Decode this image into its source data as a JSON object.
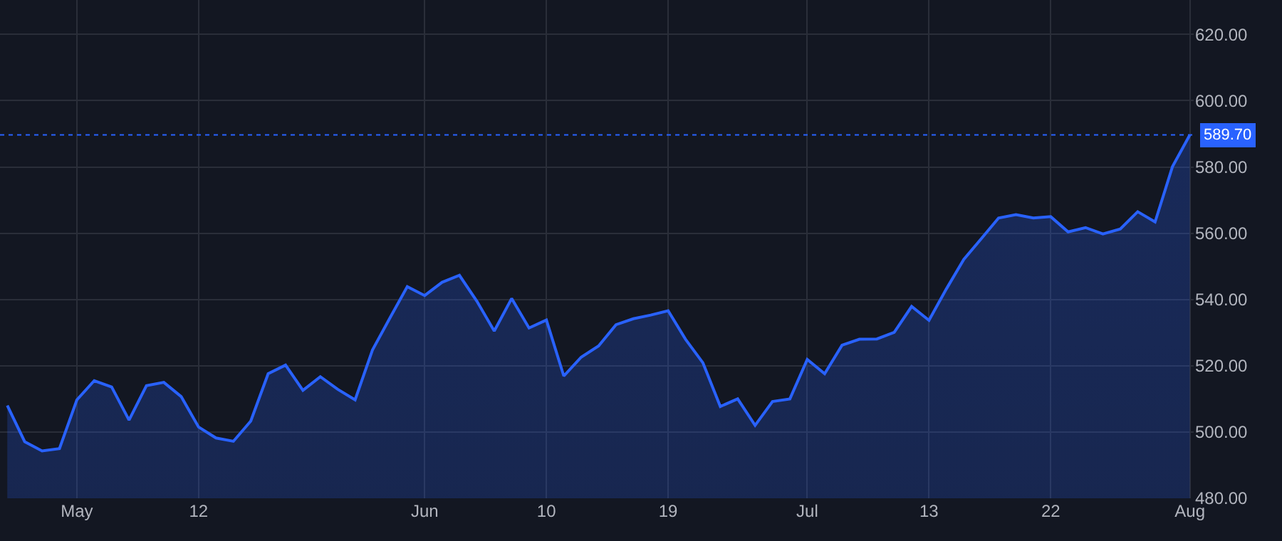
{
  "chart_data": {
    "type": "area",
    "categories": [
      null,
      null,
      null,
      null,
      "May",
      null,
      null,
      null,
      null,
      null,
      null,
      "12",
      null,
      null,
      null,
      null,
      null,
      null,
      null,
      null,
      null,
      null,
      null,
      null,
      "Jun",
      null,
      null,
      null,
      null,
      null,
      null,
      "10",
      null,
      null,
      null,
      null,
      null,
      null,
      "19",
      null,
      null,
      null,
      null,
      null,
      null,
      null,
      "Jul",
      null,
      null,
      null,
      null,
      null,
      null,
      "13",
      null,
      null,
      null,
      null,
      null,
      null,
      "22",
      null,
      null,
      null,
      null,
      null,
      null,
      null,
      "Aug"
    ],
    "series": [
      {
        "color": "#2962ff",
        "values": [
          508.0,
          497.1,
          494.3,
          495.0,
          509.7,
          515.5,
          513.6,
          503.6,
          514.0,
          515.0,
          510.7,
          501.5,
          498.2,
          497.2,
          503.3,
          517.6,
          520.2,
          512.6,
          516.7,
          512.9,
          509.7,
          524.8,
          534.4,
          543.9,
          541.2,
          545.2,
          547.3,
          539.5,
          530.5,
          540.3,
          531.4,
          533.8,
          516.9,
          522.6,
          526.0,
          532.4,
          534.2,
          535.3,
          536.6,
          528.0,
          520.9,
          507.7,
          510.0,
          502.0,
          509.2,
          510.0,
          521.9,
          517.6,
          526.2,
          528.0,
          528.1,
          530.1,
          537.9,
          533.7,
          543.2,
          552.1,
          558.3,
          564.6,
          565.6,
          564.6,
          565.0,
          560.4,
          561.7,
          559.8,
          561.3,
          566.5,
          563.4,
          580.1,
          589.7
        ]
      }
    ],
    "ylim": [
      480,
      630.4
    ],
    "yticks": [
      {
        "value": 480,
        "label": "480.00"
      },
      {
        "value": 500,
        "label": "500.00"
      },
      {
        "value": 520,
        "label": "520.00"
      },
      {
        "value": 540,
        "label": "540.00"
      },
      {
        "value": 560,
        "label": "560.00"
      },
      {
        "value": 580,
        "label": "580.00"
      },
      {
        "value": 600,
        "label": "600.00"
      },
      {
        "value": 620,
        "label": "620.00"
      }
    ],
    "ref_lines": [
      {
        "axis": "y",
        "value": 589.7,
        "label": "589.70",
        "color": "#2962ff",
        "line_style": "dotted"
      }
    ],
    "grid": true,
    "marker": "none",
    "line_style": "solid"
  }
}
